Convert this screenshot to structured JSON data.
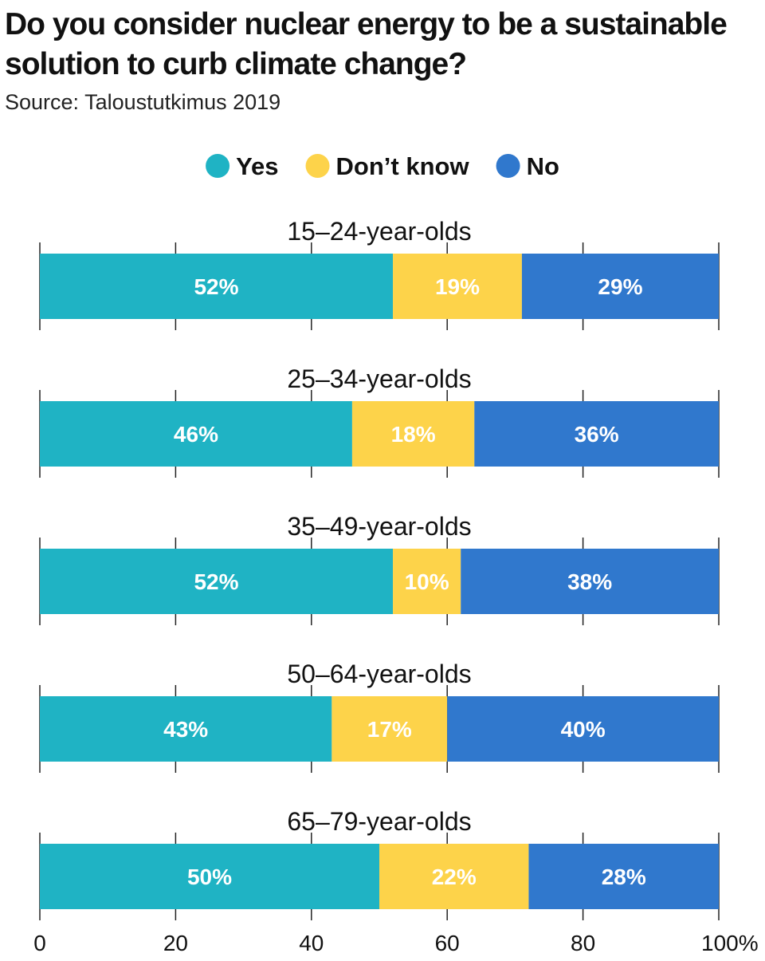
{
  "chart_data": {
    "type": "bar",
    "stacked": true,
    "orientation": "horizontal",
    "title": "Do you consider nuclear energy to be a sustainable solution to curb climate change?",
    "subtitle": "Source: Taloustutkimus 2019",
    "categories": [
      "15–24-year-olds",
      "25–34-year-olds",
      "35–49-year-olds",
      "50–64-year-olds",
      "65–79-year-olds"
    ],
    "series": [
      {
        "name": "Yes",
        "color": "#1fb3c4",
        "values": [
          52,
          46,
          52,
          43,
          50
        ]
      },
      {
        "name": "Don’t know",
        "color": "#fdd34a",
        "values": [
          19,
          18,
          10,
          17,
          22
        ]
      },
      {
        "name": "No",
        "color": "#3078cd",
        "values": [
          29,
          36,
          38,
          40,
          28
        ]
      }
    ],
    "data_label_suffix": "%",
    "xlim": [
      0,
      100
    ],
    "x_ticks": [
      "0",
      "20",
      "40",
      "60",
      "80",
      "100%"
    ],
    "x_tick_values": [
      0,
      20,
      40,
      60,
      80,
      100
    ],
    "legend_position": "top-center",
    "grid": false
  }
}
